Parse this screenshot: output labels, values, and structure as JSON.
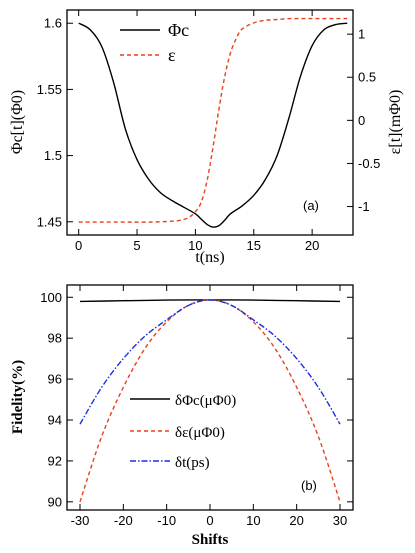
{
  "panels": [
    {
      "id": "a",
      "panel_label": "(a)",
      "xlabel": "t(ns)",
      "ylabel_left": "Φc[t](Φ0)",
      "ylabel_right": "ε[t](mΦ0)",
      "legend": [
        {
          "label": "Φc",
          "color": "#000000",
          "dash": "solid"
        },
        {
          "label": "ε",
          "color": "#e8401c",
          "dash": "dashed"
        }
      ]
    },
    {
      "id": "b",
      "panel_label": "(b)",
      "xlabel": "Shifts",
      "ylabel_left": "Fidelity(%)",
      "legend": [
        {
          "label": "δΦc(μΦ0)",
          "color": "#000000",
          "dash": "solid"
        },
        {
          "label": "δε(μΦ0)",
          "color": "#e8401c",
          "dash": "dashed"
        },
        {
          "label": "δt(ps)",
          "color": "#1a2ee0",
          "dash": "dashdot"
        }
      ]
    }
  ],
  "chart_data": [
    {
      "type": "line",
      "panel": "(a)",
      "xlabel": "t(ns)",
      "ylabel": "Φc[t](Φ0)",
      "y2label": "ε[t](mΦ0)",
      "xlim": [
        -1,
        23.5
      ],
      "ylim": [
        1.44,
        1.61
      ],
      "y2lim": [
        -1.33,
        1.28
      ],
      "xticks": [
        0,
        5,
        10,
        15,
        20
      ],
      "yticks": [
        1.45,
        1.5,
        1.55,
        1.6
      ],
      "yticklabels": [
        "1.45",
        "1.5",
        "1.55",
        "1.6"
      ],
      "y2ticks": [
        -1,
        -0.5,
        0,
        0.5,
        1
      ],
      "y2ticklabels": [
        "-1",
        "-0.5",
        "0",
        "0.5",
        "1"
      ],
      "legend_position": "top-left",
      "series": [
        {
          "name": "Φc",
          "axis": "left",
          "color": "#000000",
          "x": [
            0,
            1,
            2,
            3,
            4,
            5,
            6,
            7,
            8,
            9,
            10,
            10.5,
            11,
            11.5,
            12,
            12.5,
            13,
            14,
            15,
            16,
            17,
            18,
            19,
            20,
            21,
            22,
            23
          ],
          "y": [
            1.6,
            1.595,
            1.582,
            1.555,
            1.52,
            1.497,
            1.482,
            1.472,
            1.466,
            1.461,
            1.456,
            1.452,
            1.448,
            1.446,
            1.447,
            1.451,
            1.456,
            1.462,
            1.47,
            1.482,
            1.5,
            1.528,
            1.56,
            1.583,
            1.595,
            1.599,
            1.6
          ]
        },
        {
          "name": "ε",
          "axis": "right",
          "color": "#e8401c",
          "x": [
            0,
            2,
            4,
            6,
            8,
            9,
            9.5,
            10,
            10.5,
            11,
            11.5,
            12,
            12.5,
            13,
            13.5,
            14,
            15,
            16,
            17,
            18,
            19,
            20,
            21,
            22,
            23
          ],
          "y": [
            -1.18,
            -1.18,
            -1.18,
            -1.18,
            -1.17,
            -1.15,
            -1.12,
            -1.06,
            -0.95,
            -0.7,
            -0.32,
            0.12,
            0.5,
            0.78,
            0.95,
            1.06,
            1.13,
            1.16,
            1.17,
            1.18,
            1.18,
            1.18,
            1.18,
            1.18,
            1.18
          ]
        }
      ]
    },
    {
      "type": "line",
      "panel": "(b)",
      "xlabel": "Shifts",
      "ylabel": "Fidelity(%)",
      "xlim": [
        -33,
        33
      ],
      "ylim": [
        89.6,
        100.6
      ],
      "xticks": [
        -30,
        -20,
        -10,
        0,
        10,
        20,
        30
      ],
      "yticks": [
        90,
        92,
        94,
        96,
        98,
        100
      ],
      "legend_position": "center",
      "series": [
        {
          "name": "δΦc(μΦ0)",
          "color": "#000000",
          "x": [
            -30,
            -20,
            -10,
            0,
            10,
            20,
            30
          ],
          "y": [
            99.8,
            99.83,
            99.86,
            99.87,
            99.86,
            99.83,
            99.8
          ]
        },
        {
          "name": "δε(μΦ0)",
          "color": "#e8401c",
          "x": [
            -30,
            -25,
            -20,
            -15,
            -10,
            -5,
            0,
            5,
            10,
            15,
            20,
            25,
            30
          ],
          "y": [
            90.0,
            93.2,
            95.6,
            97.5,
            98.8,
            99.6,
            99.87,
            99.6,
            98.8,
            97.5,
            95.6,
            93.2,
            90.0
          ]
        },
        {
          "name": "δt(ps)",
          "color": "#1a2ee0",
          "x": [
            -30,
            -25,
            -20,
            -15,
            -10,
            -5,
            0,
            5,
            10,
            15,
            20,
            25,
            30
          ],
          "y": [
            93.8,
            95.6,
            97.0,
            98.1,
            98.9,
            99.6,
            99.87,
            99.6,
            98.9,
            98.1,
            97.0,
            95.6,
            93.8
          ]
        }
      ]
    }
  ]
}
